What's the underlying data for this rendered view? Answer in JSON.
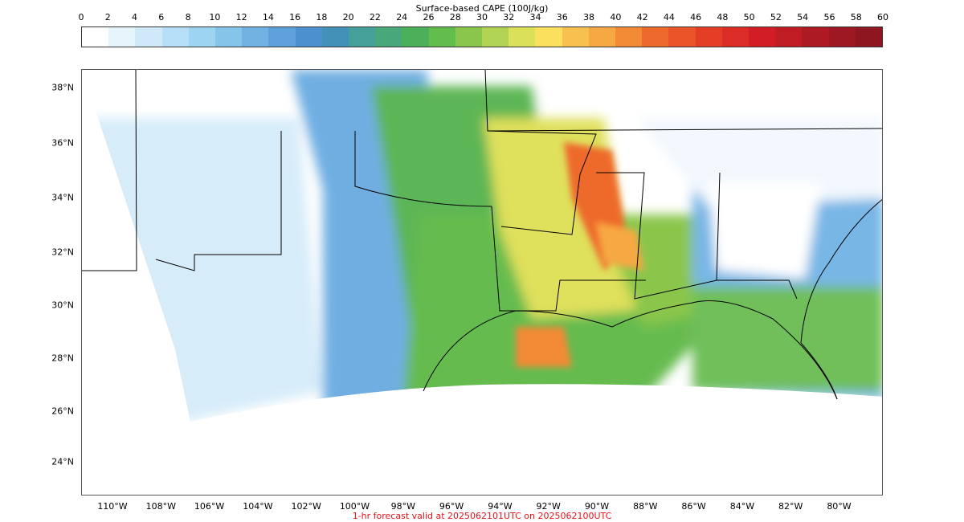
{
  "colorbar": {
    "title": "Surface-based CAPE (100J/kg)",
    "ticks": [
      "0",
      "2",
      "4",
      "6",
      "8",
      "10",
      "12",
      "14",
      "16",
      "18",
      "20",
      "22",
      "24",
      "26",
      "28",
      "30",
      "32",
      "34",
      "36",
      "38",
      "40",
      "42",
      "44",
      "46",
      "48",
      "50",
      "52",
      "54",
      "56",
      "58",
      "60"
    ],
    "colors": [
      "#ffffff",
      "#e6f4fc",
      "#cfe9f8",
      "#b6def6",
      "#9dd4f1",
      "#87c4ea",
      "#71b2e2",
      "#5fa1da",
      "#4d90cf",
      "#4390b8",
      "#45a09a",
      "#48a87b",
      "#4caf5a",
      "#63bd4c",
      "#8bc64c",
      "#b1d354",
      "#dbe05b",
      "#fae05c",
      "#f8c04e",
      "#f6a842",
      "#f28a36",
      "#ee6a2c",
      "#ea5428",
      "#e43e26",
      "#dc2c26",
      "#d21c26",
      "#c01c24",
      "#ad1a23",
      "#9d1822",
      "#8e1620"
    ]
  },
  "map": {
    "lat_labels": [
      "38°N",
      "36°N",
      "34°N",
      "32°N",
      "30°N",
      "28°N",
      "26°N",
      "24°N"
    ],
    "lon_labels": [
      "110°W",
      "108°W",
      "106°W",
      "104°W",
      "102°W",
      "100°W",
      "98°W",
      "96°W",
      "94°W",
      "92°W",
      "90°W",
      "88°W",
      "86°W",
      "84°W",
      "82°W",
      "80°W"
    ]
  },
  "footer": "1-hr forecast valid at 2025062101UTC on 2025062100UTC"
}
